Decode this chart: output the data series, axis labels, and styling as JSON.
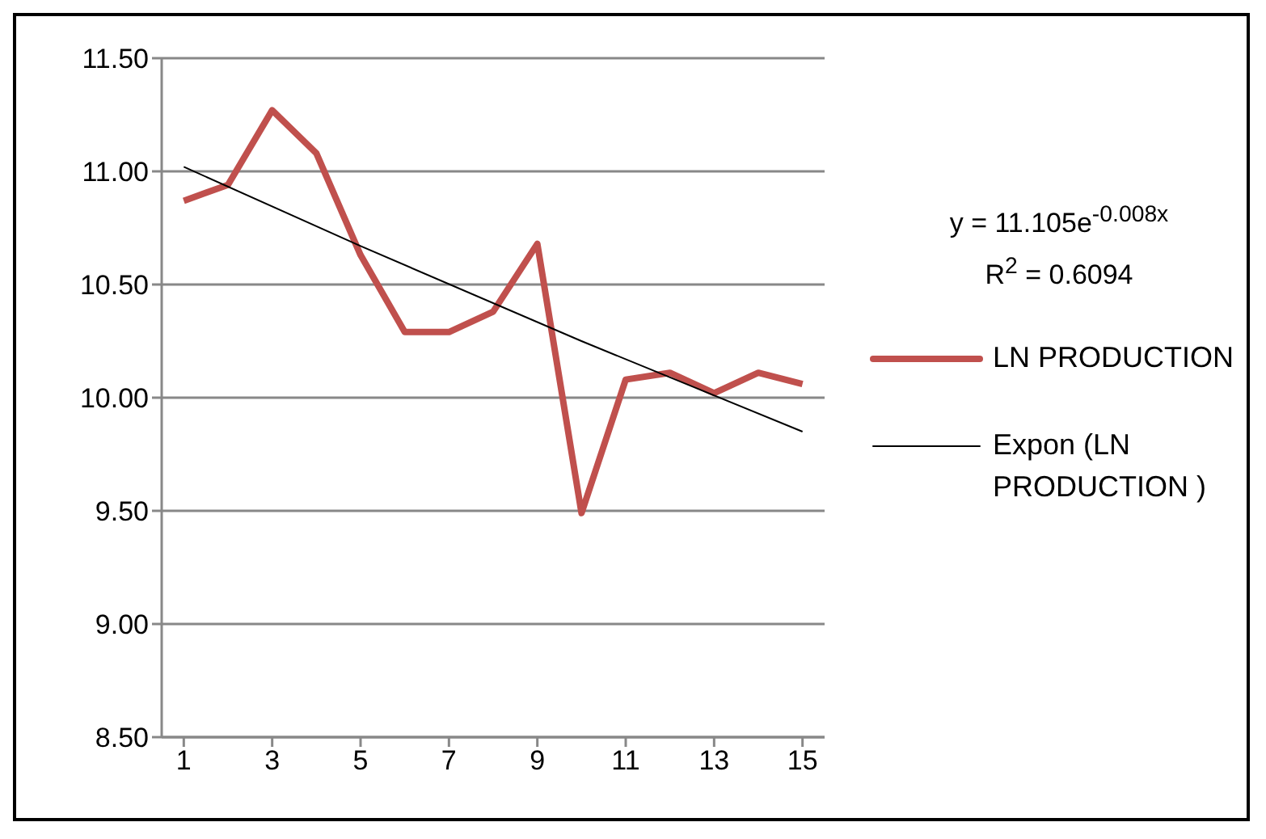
{
  "chart_data": {
    "type": "line",
    "series": [
      {
        "name": "LN PRODUCTION",
        "color": "#c0504d",
        "x": [
          1,
          2,
          3,
          4,
          5,
          6,
          7,
          8,
          9,
          10,
          11,
          12,
          13,
          14,
          15
        ],
        "values": [
          10.87,
          10.94,
          11.27,
          11.08,
          10.63,
          10.29,
          10.29,
          10.38,
          10.68,
          9.49,
          10.08,
          10.11,
          10.02,
          10.11,
          10.06
        ]
      },
      {
        "name": "Expon (LN PRODUCTION )",
        "color": "#000000",
        "x": [
          1,
          5,
          10,
          15
        ],
        "values": [
          11.02,
          10.67,
          10.25,
          9.85
        ]
      }
    ],
    "annotations": [
      "y = 11.105e$^{-0.008x}$",
      "R$^{2}$ = 0.6094"
    ],
    "xlim": [
      0.5,
      15.5
    ],
    "xticks": [
      1,
      3,
      5,
      7,
      9,
      11,
      13,
      15
    ],
    "ylim": [
      8.5,
      11.5
    ],
    "yticks": [
      {
        "value": 8.5,
        "label": "8.50"
      },
      {
        "value": 9,
        "label": "9.00"
      },
      {
        "value": 9.5,
        "label": "9.50"
      },
      {
        "value": 10,
        "label": "10.00"
      },
      {
        "value": 10.5,
        "label": "10.50"
      },
      {
        "value": 11,
        "label": "11.00"
      },
      {
        "value": 11.5,
        "label": "11.50"
      }
    ],
    "grid": "y",
    "legend": "right",
    "marker": "none",
    "line_style": "solid"
  }
}
